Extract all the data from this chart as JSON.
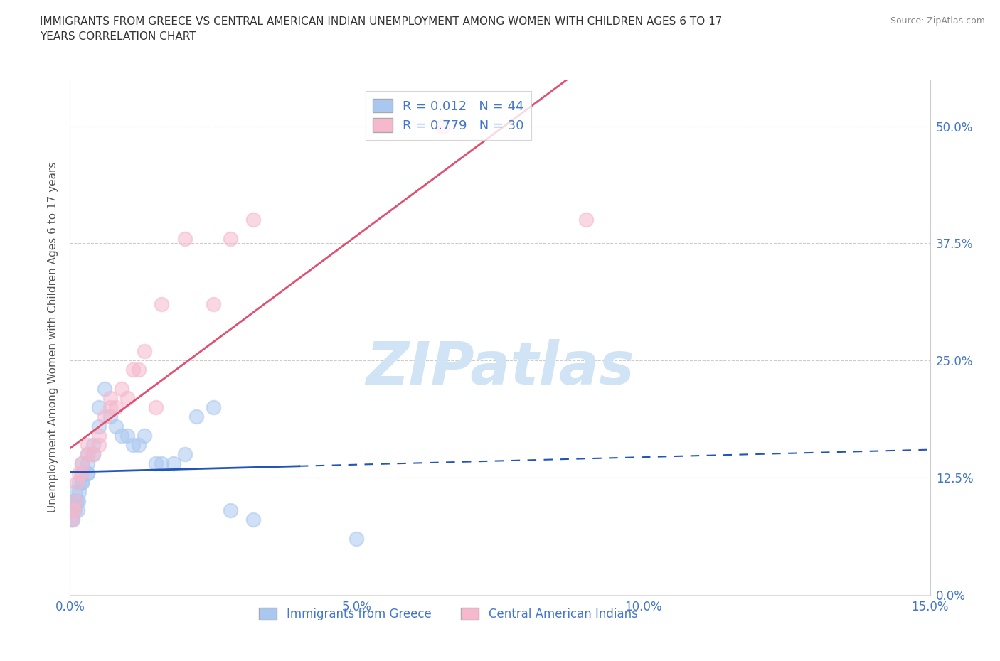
{
  "title_line1": "IMMIGRANTS FROM GREECE VS CENTRAL AMERICAN INDIAN UNEMPLOYMENT AMONG WOMEN WITH CHILDREN AGES 6 TO 17",
  "title_line2": "YEARS CORRELATION CHART",
  "source": "Source: ZipAtlas.com",
  "ylabel": "Unemployment Among Women with Children Ages 6 to 17 years",
  "xlim": [
    0.0,
    0.15
  ],
  "ylim": [
    0.0,
    0.55
  ],
  "yticks": [
    0.0,
    0.125,
    0.25,
    0.375,
    0.5
  ],
  "xticks": [
    0.0,
    0.05,
    0.1,
    0.15
  ],
  "watermark_text": "ZIPatlas",
  "blue_scatter_color": "#aac8ef",
  "pink_scatter_color": "#f5b8cc",
  "blue_line_color": "#2255bb",
  "pink_line_color": "#e05070",
  "tick_label_color": "#4477cc",
  "title_color": "#333333",
  "source_color": "#888888",
  "ylabel_color": "#555555",
  "grid_color": "#cccccc",
  "watermark_color": "#d0e4f5",
  "legend_patch_blue": "#aac8ef",
  "legend_patch_pink": "#f5b8cc",
  "legend_label1": "R = 0.012   N = 44",
  "legend_label2": "R = 0.779   N = 30",
  "legend_text_color": "#4477cc",
  "bottom_legend_label1": "Immigrants from Greece",
  "bottom_legend_label2": "Central American Indians",
  "greece_x": [
    0.0002,
    0.0003,
    0.0004,
    0.0005,
    0.0006,
    0.0007,
    0.0008,
    0.0009,
    0.001,
    0.001,
    0.0012,
    0.0013,
    0.0014,
    0.0015,
    0.0015,
    0.002,
    0.002,
    0.002,
    0.002,
    0.003,
    0.003,
    0.003,
    0.003,
    0.004,
    0.004,
    0.005,
    0.005,
    0.006,
    0.007,
    0.008,
    0.009,
    0.01,
    0.011,
    0.012,
    0.013,
    0.015,
    0.016,
    0.018,
    0.02,
    0.022,
    0.025,
    0.028,
    0.032,
    0.05
  ],
  "greece_y": [
    0.09,
    0.08,
    0.08,
    0.09,
    0.1,
    0.1,
    0.09,
    0.1,
    0.1,
    0.11,
    0.1,
    0.09,
    0.1,
    0.11,
    0.12,
    0.12,
    0.13,
    0.14,
    0.12,
    0.13,
    0.14,
    0.15,
    0.13,
    0.16,
    0.15,
    0.2,
    0.18,
    0.22,
    0.19,
    0.18,
    0.17,
    0.17,
    0.16,
    0.16,
    0.17,
    0.14,
    0.14,
    0.14,
    0.15,
    0.19,
    0.2,
    0.09,
    0.08,
    0.06
  ],
  "indian_x": [
    0.0003,
    0.0005,
    0.0007,
    0.001,
    0.0012,
    0.0015,
    0.002,
    0.002,
    0.003,
    0.003,
    0.004,
    0.005,
    0.005,
    0.006,
    0.007,
    0.007,
    0.008,
    0.009,
    0.01,
    0.011,
    0.012,
    0.013,
    0.015,
    0.016,
    0.02,
    0.025,
    0.028,
    0.032,
    0.065,
    0.09
  ],
  "indian_y": [
    0.08,
    0.09,
    0.09,
    0.1,
    0.12,
    0.13,
    0.14,
    0.13,
    0.15,
    0.16,
    0.15,
    0.17,
    0.16,
    0.19,
    0.2,
    0.21,
    0.2,
    0.22,
    0.21,
    0.24,
    0.24,
    0.26,
    0.2,
    0.31,
    0.38,
    0.31,
    0.38,
    0.4,
    0.5,
    0.4
  ]
}
